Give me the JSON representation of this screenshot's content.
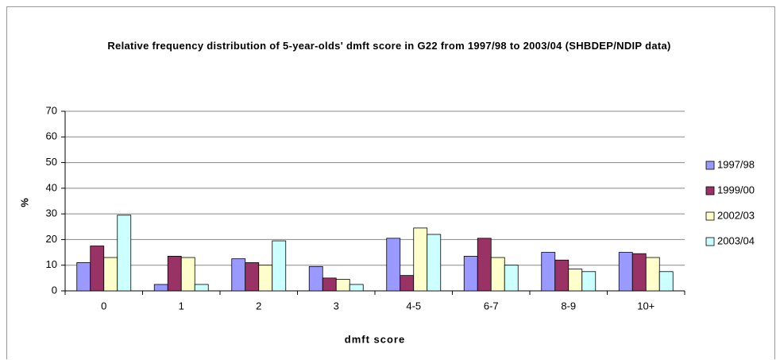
{
  "chart_data": {
    "type": "bar",
    "title": "Relative frequency distribution of 5-year-olds' dmft score in G22 from 1997/98 to 2003/04 (SHBDEP/NDIP data)",
    "x_label": "dmft score",
    "y_label": "%",
    "categories": [
      "0",
      "1",
      "2",
      "3",
      "4-5",
      "6-7",
      "8-9",
      "10+"
    ],
    "series": [
      {
        "name": "1997/98",
        "color": "#9999ff",
        "values": [
          11,
          2.5,
          12.5,
          9.5,
          20.5,
          13.5,
          15,
          15
        ]
      },
      {
        "name": "1999/00",
        "color": "#993366",
        "values": [
          17.5,
          13.5,
          11,
          5,
          6,
          20.5,
          12,
          14.5
        ]
      },
      {
        "name": "2002/03",
        "color": "#ffffcc",
        "values": [
          13,
          13,
          10,
          4.5,
          24.5,
          13,
          8.5,
          13
        ]
      },
      {
        "name": "2003/04",
        "color": "#ccffff",
        "values": [
          29.5,
          2.5,
          19.5,
          2.5,
          22,
          10,
          7.5,
          7.5
        ]
      }
    ],
    "ylim": [
      0,
      70
    ],
    "yticks": [
      0,
      10,
      20,
      30,
      40,
      50,
      60,
      70
    ],
    "grid": true,
    "legend": "right"
  }
}
